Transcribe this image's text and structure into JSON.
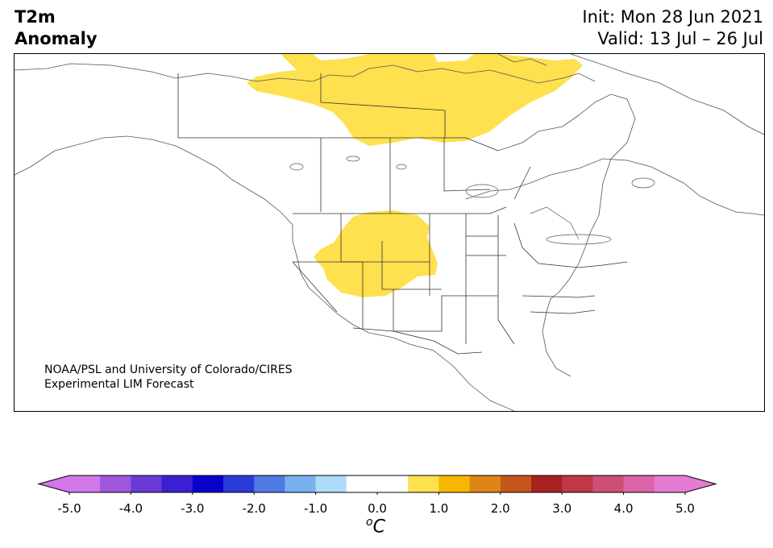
{
  "header": {
    "title_line1": "T2m",
    "title_line2": "Anomaly",
    "init_text": "Init: Mon 28 Jun 2021",
    "valid_text": "Valid: 13 Jul – 26 Jul"
  },
  "credit": {
    "line1": "NOAA/PSL and University of Colorado/CIRES",
    "line2": "Experimental LIM Forecast"
  },
  "map": {
    "region": "North America",
    "anomaly_areas": [
      {
        "region": "Northern Canada / Arctic Archipelago",
        "category": "0.5 to 1.0",
        "color": "#ffe04f"
      },
      {
        "region": "Interior western United States (Idaho, Utah, Wyoming, Colorado)",
        "category": "0.5 to 1.0",
        "color": "#ffe04f"
      }
    ]
  },
  "colorbar": {
    "min": -5.0,
    "max": 5.0,
    "step": 0.5,
    "extend": "both",
    "colors": [
      "#d277e8",
      "#9c57dc",
      "#6a3ad6",
      "#3b1fd0",
      "#0a00cc",
      "#2a3bd9",
      "#4f7be2",
      "#77b2ee",
      "#aedcf8",
      "#ffffff",
      "#ffffff",
      "#ffe04f",
      "#f5b700",
      "#df8517",
      "#c5561b",
      "#a82222",
      "#c03748",
      "#cc4f74",
      "#da64a6",
      "#e47bd4"
    ],
    "under_color": "#d277e8",
    "over_color": "#e47bd4",
    "ticks": [
      "-5.0",
      "-4.0",
      "-3.0",
      "-2.0",
      "-1.0",
      "0.0",
      "1.0",
      "2.0",
      "3.0",
      "4.0",
      "5.0"
    ],
    "units_base": "C",
    "units_sup": "o"
  }
}
